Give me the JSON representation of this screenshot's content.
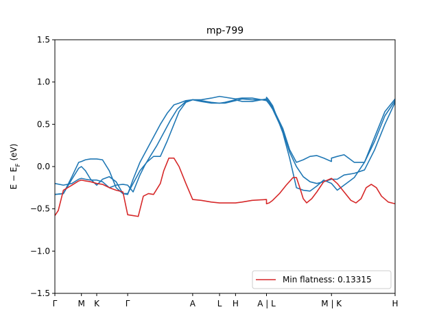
{
  "chart_data": {
    "type": "line",
    "title": "mp-799",
    "ylabel": "E − E_F (eV)",
    "ylabel_main": "E − E",
    "ylabel_sub": "F",
    "ylabel_unit": " (eV)",
    "xlabel": "",
    "xlim": [
      0,
      100
    ],
    "ylim": [
      -1.5,
      1.5
    ],
    "yticks": [
      -1.5,
      -1.0,
      -0.5,
      0.0,
      0.5,
      1.0,
      1.5
    ],
    "ytick_labels": [
      "−1.5",
      "−1.0",
      "−0.5",
      "0.0",
      "0.5",
      "1.0",
      "1.5"
    ],
    "kpoint_ticks": [
      {
        "x": 0.0,
        "label": "Γ"
      },
      {
        "x": 7.8,
        "label": "M"
      },
      {
        "x": 12.3,
        "label": "K"
      },
      {
        "x": 21.4,
        "label": "Γ"
      },
      {
        "x": 40.5,
        "label": "A"
      },
      {
        "x": 48.4,
        "label": "L"
      },
      {
        "x": 53.1,
        "label": "H"
      },
      {
        "x": 62.2,
        "label": "A | L"
      },
      {
        "x": 81.3,
        "label": "M | K"
      },
      {
        "x": 100.0,
        "label": "H"
      }
    ],
    "grid": false,
    "legend": {
      "placement": "lower-right",
      "entries": [
        {
          "label": "Min flatness: 0.13315",
          "color": "#d62728"
        }
      ]
    },
    "series": [
      {
        "color": "#1f77b4",
        "x": [
          0,
          2.5,
          5,
          7,
          7.8,
          9,
          10.5,
          12.3,
          14,
          16,
          18,
          20,
          21.4,
          23,
          25,
          27,
          29,
          31,
          33,
          35,
          36.5,
          38.5,
          40.5,
          43,
          46,
          48.4,
          50,
          53.1,
          55,
          58,
          62.2,
          63,
          64,
          67,
          69,
          71,
          73,
          75,
          77,
          79,
          81.3,
          81.3,
          83,
          85,
          88,
          91,
          94,
          97,
          100
        ],
        "y": [
          -0.33,
          -0.32,
          -0.12,
          0.05,
          0.06,
          0.08,
          0.09,
          0.09,
          0.08,
          -0.05,
          -0.25,
          -0.32,
          -0.33,
          -0.15,
          0.05,
          0.2,
          0.35,
          0.5,
          0.63,
          0.73,
          0.75,
          0.78,
          0.79,
          0.77,
          0.75,
          0.75,
          0.76,
          0.79,
          0.77,
          0.77,
          0.8,
          0.76,
          0.7,
          0.45,
          0.2,
          0.05,
          0.08,
          0.12,
          0.13,
          0.1,
          0.06,
          0.1,
          0.12,
          0.14,
          0.05,
          0.05,
          0.3,
          0.6,
          0.78
        ]
      },
      {
        "color": "#1f77b4",
        "x": [
          0,
          2.5,
          5,
          7,
          7.8,
          9,
          10.5,
          12.3,
          14,
          16,
          18,
          20,
          21.4,
          23,
          25,
          27,
          29,
          31,
          33,
          35,
          36.5,
          38.5,
          40.5,
          43,
          46,
          48.4,
          50,
          53.1,
          55,
          58,
          62.2,
          63,
          64,
          67,
          69,
          71,
          73,
          75,
          77,
          79,
          81.3,
          83,
          85,
          88,
          91,
          94,
          97,
          100
        ],
        "y": [
          -0.33,
          -0.32,
          -0.15,
          -0.02,
          0.0,
          -0.05,
          -0.15,
          -0.22,
          -0.15,
          -0.12,
          -0.18,
          -0.32,
          -0.32,
          -0.2,
          -0.05,
          0.05,
          0.12,
          0.12,
          0.3,
          0.5,
          0.65,
          0.76,
          0.79,
          0.79,
          0.81,
          0.83,
          0.82,
          0.8,
          0.81,
          0.81,
          0.78,
          0.74,
          0.68,
          0.42,
          0.17,
          0.0,
          -0.12,
          -0.18,
          -0.2,
          -0.18,
          -0.15,
          -0.15,
          -0.1,
          -0.08,
          -0.04,
          0.2,
          0.5,
          0.76
        ]
      },
      {
        "color": "#1f77b4",
        "x": [
          0,
          2.5,
          5,
          7,
          7.8,
          9,
          10.5,
          12.3,
          14,
          16,
          18,
          20,
          21.4,
          23,
          25,
          26.5,
          28,
          30,
          32,
          34,
          36,
          38.5,
          40.5,
          43,
          46,
          48.4,
          50,
          53.1,
          55,
          58,
          62.2,
          62.2,
          63,
          64,
          67,
          69,
          71,
          73,
          75,
          77,
          79,
          81.3,
          83,
          85,
          88,
          91,
          94,
          97,
          100
        ],
        "y": [
          -0.2,
          -0.22,
          -0.2,
          -0.15,
          -0.14,
          -0.15,
          -0.16,
          -0.16,
          -0.18,
          -0.25,
          -0.22,
          -0.21,
          -0.22,
          -0.3,
          -0.1,
          0.02,
          0.12,
          0.25,
          0.4,
          0.55,
          0.68,
          0.77,
          0.79,
          0.78,
          0.76,
          0.75,
          0.75,
          0.78,
          0.8,
          0.79,
          0.79,
          0.82,
          0.78,
          0.72,
          0.4,
          0.1,
          -0.25,
          -0.28,
          -0.29,
          -0.23,
          -0.16,
          -0.2,
          -0.28,
          -0.22,
          -0.13,
          0.05,
          0.35,
          0.65,
          0.8
        ]
      },
      {
        "color": "#d62728",
        "name": "Min flatness: 0.13315",
        "x": [
          0,
          1,
          2.5,
          5,
          7,
          7.8,
          9,
          10.5,
          12.3,
          14,
          16,
          18,
          20,
          21.4,
          23,
          24.5,
          26,
          27.5,
          29,
          31,
          32,
          33.5,
          35,
          36.5,
          38.5,
          40.5,
          43,
          46,
          48.4,
          50,
          53.1,
          55,
          58,
          62.2,
          62.2,
          63,
          64,
          66,
          68,
          70,
          71,
          72,
          73,
          74,
          75.5,
          77,
          79,
          81.3,
          83,
          85,
          87,
          88.5,
          90,
          91.5,
          93,
          94.5,
          96,
          98,
          100
        ],
        "y": [
          -0.58,
          -0.52,
          -0.28,
          -0.22,
          -0.17,
          -0.16,
          -0.17,
          -0.18,
          -0.2,
          -0.21,
          -0.25,
          -0.28,
          -0.3,
          -0.57,
          -0.58,
          -0.59,
          -0.35,
          -0.32,
          -0.33,
          -0.2,
          -0.05,
          0.1,
          0.1,
          0.0,
          -0.2,
          -0.39,
          -0.4,
          -0.42,
          -0.43,
          -0.43,
          -0.43,
          -0.42,
          -0.4,
          -0.39,
          -0.44,
          -0.43,
          -0.4,
          -0.32,
          -0.22,
          -0.13,
          -0.13,
          -0.25,
          -0.38,
          -0.43,
          -0.38,
          -0.3,
          -0.18,
          -0.14,
          -0.2,
          -0.3,
          -0.4,
          -0.43,
          -0.38,
          -0.25,
          -0.21,
          -0.25,
          -0.35,
          -0.42,
          -0.44
        ]
      }
    ]
  }
}
